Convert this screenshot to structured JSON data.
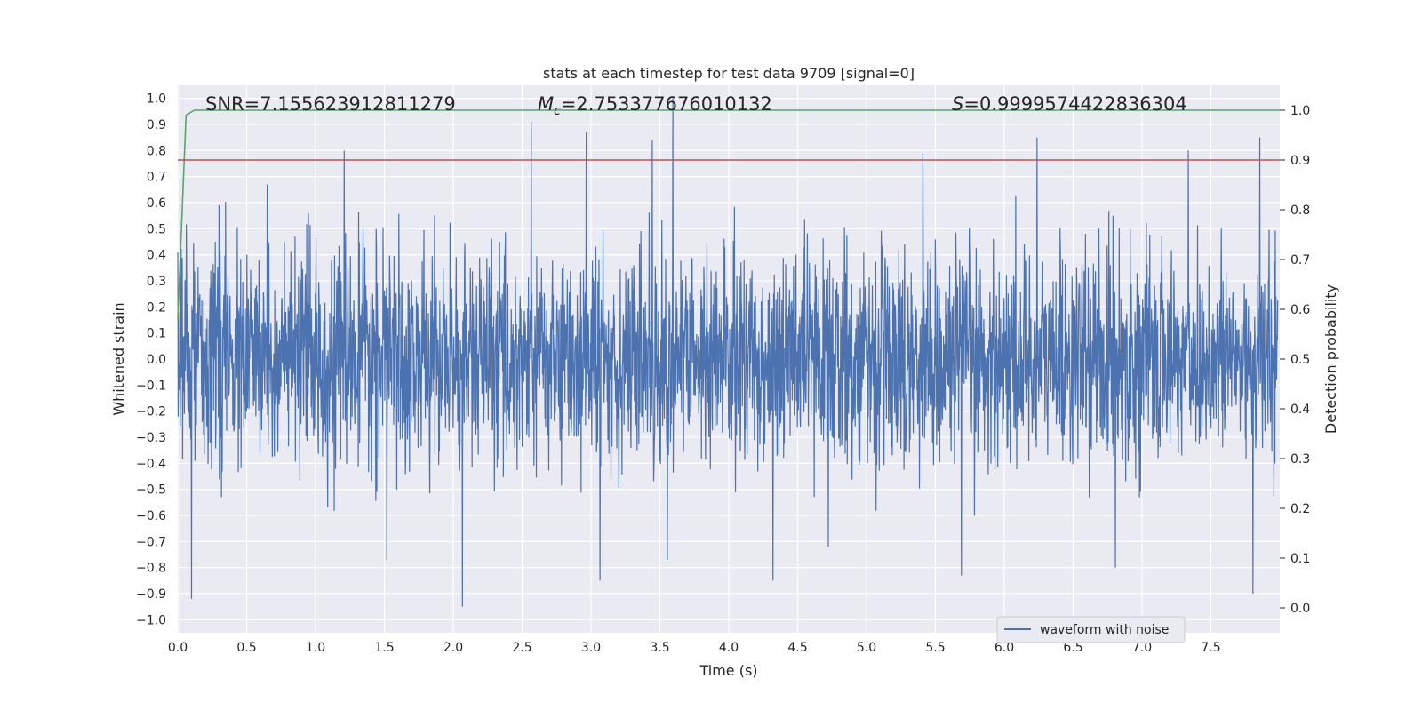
{
  "chart_data": {
    "type": "line",
    "title": "stats at each timestep for test data 9709 [signal=0]",
    "xlabel": "Time (s)",
    "ylabel_left": "Whitened strain",
    "ylabel_right": "Detection probability",
    "xlim": [
      0.0,
      8.0
    ],
    "ylim_left": [
      -1.05,
      1.05
    ],
    "ylim_right": [
      -0.05,
      1.05
    ],
    "x_ticks": [
      "0.0",
      "0.5",
      "1.0",
      "1.5",
      "2.0",
      "2.5",
      "3.0",
      "3.5",
      "4.0",
      "4.5",
      "5.0",
      "5.5",
      "6.0",
      "6.5",
      "7.0",
      "7.5"
    ],
    "y_left_ticks": [
      "1.0",
      "0.9",
      "0.8",
      "0.7",
      "0.6",
      "0.5",
      "0.4",
      "0.3",
      "0.2",
      "0.1",
      "0.0",
      "-0.1",
      "-0.2",
      "-0.3",
      "-0.4",
      "-0.5",
      "-0.6",
      "-0.7",
      "-0.8",
      "-0.9",
      "-1.0"
    ],
    "y_right_ticks": [
      "1.0",
      "0.9",
      "0.8",
      "0.7",
      "0.6",
      "0.5",
      "0.4",
      "0.3",
      "0.2",
      "0.1",
      "0.0"
    ],
    "annotations": {
      "snr": "SNR=7.155623912811279",
      "mc_symbol": "M",
      "mc_sub": "c",
      "mc_value": "=2.753377676010132",
      "s_symbol": "S",
      "s_value": "=0.9999574422836304"
    },
    "grid": true,
    "legend_position": "bottom-right",
    "series": [
      {
        "name": "waveform with noise",
        "axis": "left",
        "color": "#4c72b0",
        "description_values": "noise band approx. -0.4 to 0.4 with peaks near +1.0 at x=3.6 and -0.95 at x=2.07",
        "peaks": [
          {
            "x": 0.1,
            "y": -0.92
          },
          {
            "x": 0.3,
            "y": 0.59
          },
          {
            "x": 0.65,
            "y": 0.67
          },
          {
            "x": 1.21,
            "y": 0.8
          },
          {
            "x": 1.52,
            "y": -0.77
          },
          {
            "x": 2.07,
            "y": -0.95
          },
          {
            "x": 2.57,
            "y": 0.91
          },
          {
            "x": 2.97,
            "y": 0.87
          },
          {
            "x": 3.07,
            "y": -0.85
          },
          {
            "x": 3.45,
            "y": 0.84
          },
          {
            "x": 3.6,
            "y": 1.0
          },
          {
            "x": 3.56,
            "y": -0.77
          },
          {
            "x": 4.33,
            "y": -0.85
          },
          {
            "x": 5.42,
            "y": 0.79
          },
          {
            "x": 5.7,
            "y": -0.83
          },
          {
            "x": 6.25,
            "y": 0.85
          },
          {
            "x": 6.82,
            "y": -0.8
          },
          {
            "x": 7.35,
            "y": 0.8
          },
          {
            "x": 7.87,
            "y": 0.85
          },
          {
            "x": 7.82,
            "y": -0.9
          }
        ]
      },
      {
        "name": "",
        "axis": "right",
        "color": "#55a868",
        "x": [
          0.0,
          0.06,
          0.12,
          8.0
        ],
        "values": [
          0.58,
          0.99,
          1.0,
          1.0
        ]
      },
      {
        "name": "",
        "axis": "right",
        "color": "#c44e52",
        "x": [
          0.0,
          8.0
        ],
        "values": [
          0.9,
          0.9
        ]
      }
    ]
  },
  "legend": {
    "label": "waveform with noise"
  }
}
